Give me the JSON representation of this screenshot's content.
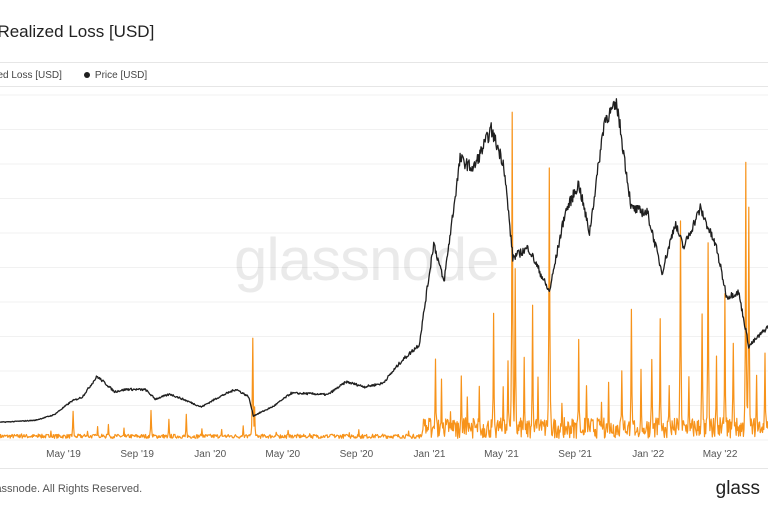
{
  "header": {
    "title": "t Realized Loss [USD]"
  },
  "legend": [
    {
      "label": "lized Loss [USD]",
      "color": "#f7931a"
    },
    {
      "label": "Price [USD]",
      "color": "#1f1f1f"
    }
  ],
  "watermark": "glassnode",
  "footer": {
    "copyright": "lassnode. All Rights Reserved.",
    "logo": "glass"
  },
  "chart_data": {
    "type": "line",
    "title": "t Realized Loss [USD]",
    "xlabel": "",
    "ylabel": "",
    "x_range": [
      "2019-01-15",
      "2022-07-20"
    ],
    "grid": true,
    "legend_placement": "top-left",
    "x_ticks": [
      {
        "label": "May '19",
        "date": "2019-05-01"
      },
      {
        "label": "Sep '19",
        "date": "2019-09-01"
      },
      {
        "label": "Jan '20",
        "date": "2020-01-01"
      },
      {
        "label": "May '20",
        "date": "2020-05-01"
      },
      {
        "label": "Sep '20",
        "date": "2020-09-01"
      },
      {
        "label": "Jan '21",
        "date": "2021-01-01"
      },
      {
        "label": "May '21",
        "date": "2021-05-01"
      },
      {
        "label": "Sep '21",
        "date": "2021-09-01"
      },
      {
        "label": "Jan '22",
        "date": "2022-01-01"
      },
      {
        "label": "May '22",
        "date": "2022-05-01"
      }
    ],
    "series": [
      {
        "name": "Price [USD]",
        "color": "#1f1f1f",
        "axis": "left",
        "ylim": [
          0,
          70000
        ],
        "points": [
          [
            "2019-01-15",
            3600
          ],
          [
            "2019-02-15",
            3800
          ],
          [
            "2019-03-15",
            4000
          ],
          [
            "2019-04-15",
            5100
          ],
          [
            "2019-05-15",
            7900
          ],
          [
            "2019-06-01",
            8700
          ],
          [
            "2019-06-26",
            12900
          ],
          [
            "2019-07-10",
            11500
          ],
          [
            "2019-07-25",
            9800
          ],
          [
            "2019-08-15",
            10300
          ],
          [
            "2019-09-15",
            10200
          ],
          [
            "2019-10-01",
            8300
          ],
          [
            "2019-10-26",
            9300
          ],
          [
            "2019-11-20",
            8100
          ],
          [
            "2019-12-17",
            6700
          ],
          [
            "2020-01-15",
            8700
          ],
          [
            "2020-02-13",
            10300
          ],
          [
            "2020-03-05",
            8800
          ],
          [
            "2020-03-13",
            4900
          ],
          [
            "2020-04-15",
            6800
          ],
          [
            "2020-05-15",
            9500
          ],
          [
            "2020-06-15",
            9400
          ],
          [
            "2020-07-15",
            9200
          ],
          [
            "2020-08-15",
            11800
          ],
          [
            "2020-09-15",
            10800
          ],
          [
            "2020-10-15",
            11500
          ],
          [
            "2020-11-15",
            16000
          ],
          [
            "2020-12-15",
            19400
          ],
          [
            "2021-01-08",
            40000
          ],
          [
            "2021-01-25",
            32000
          ],
          [
            "2021-02-21",
            57000
          ],
          [
            "2021-03-15",
            55000
          ],
          [
            "2021-04-14",
            63000
          ],
          [
            "2021-05-05",
            56000
          ],
          [
            "2021-05-20",
            37000
          ],
          [
            "2021-06-15",
            39000
          ],
          [
            "2021-07-20",
            30000
          ],
          [
            "2021-08-15",
            46000
          ],
          [
            "2021-09-07",
            52000
          ],
          [
            "2021-09-25",
            42000
          ],
          [
            "2021-10-20",
            65000
          ],
          [
            "2021-11-10",
            68000
          ],
          [
            "2021-12-04",
            47000
          ],
          [
            "2021-12-31",
            46000
          ],
          [
            "2022-01-24",
            34000
          ],
          [
            "2022-02-15",
            44000
          ],
          [
            "2022-03-01",
            39000
          ],
          [
            "2022-03-29",
            47000
          ],
          [
            "2022-04-25",
            39000
          ],
          [
            "2022-05-12",
            29000
          ],
          [
            "2022-06-01",
            30000
          ],
          [
            "2022-06-18",
            19000
          ],
          [
            "2022-07-20",
            23000
          ]
        ]
      },
      {
        "name": "Realized Loss [USD]",
        "color": "#f7931a",
        "axis": "right",
        "ylim": [
          0,
          5000000000
        ],
        "baseline": 60000000,
        "spikes": [
          [
            "2019-02-20",
            80000000
          ],
          [
            "2019-03-20",
            90000000
          ],
          [
            "2019-04-10",
            120000000
          ],
          [
            "2019-05-17",
            450000000
          ],
          [
            "2019-06-10",
            130000000
          ],
          [
            "2019-06-27",
            220000000
          ],
          [
            "2019-07-15",
            250000000
          ],
          [
            "2019-08-10",
            150000000
          ],
          [
            "2019-09-24",
            500000000
          ],
          [
            "2019-10-24",
            280000000
          ],
          [
            "2019-11-22",
            350000000
          ],
          [
            "2019-12-18",
            180000000
          ],
          [
            "2020-01-20",
            150000000
          ],
          [
            "2020-02-25",
            230000000
          ],
          [
            "2020-03-12",
            1600000000
          ],
          [
            "2020-03-15",
            450000000
          ],
          [
            "2020-04-20",
            100000000
          ],
          [
            "2020-05-10",
            160000000
          ],
          [
            "2020-06-15",
            90000000
          ],
          [
            "2020-07-20",
            80000000
          ],
          [
            "2020-08-20",
            110000000
          ],
          [
            "2020-09-05",
            160000000
          ],
          [
            "2020-10-15",
            100000000
          ],
          [
            "2020-11-27",
            130000000
          ],
          [
            "2020-12-21",
            150000000
          ],
          [
            "2021-01-11",
            1300000000
          ],
          [
            "2021-01-21",
            800000000
          ],
          [
            "2021-02-05",
            400000000
          ],
          [
            "2021-02-23",
            950000000
          ],
          [
            "2021-03-05",
            600000000
          ],
          [
            "2021-03-25",
            700000000
          ],
          [
            "2021-04-18",
            1600000000
          ],
          [
            "2021-05-04",
            800000000
          ],
          [
            "2021-05-12",
            1300000000
          ],
          [
            "2021-05-19",
            4800000000
          ],
          [
            "2021-05-24",
            2400000000
          ],
          [
            "2021-06-08",
            1100000000
          ],
          [
            "2021-06-22",
            1900000000
          ],
          [
            "2021-07-01",
            800000000
          ],
          [
            "2021-07-20",
            4200000000
          ],
          [
            "2021-08-10",
            500000000
          ],
          [
            "2021-09-07",
            1400000000
          ],
          [
            "2021-09-20",
            900000000
          ],
          [
            "2021-10-15",
            500000000
          ],
          [
            "2021-10-27",
            850000000
          ],
          [
            "2021-11-18",
            1100000000
          ],
          [
            "2021-12-04",
            1700000000
          ],
          [
            "2021-12-20",
            900000000
          ],
          [
            "2022-01-07",
            1300000000
          ],
          [
            "2022-01-21",
            1600000000
          ],
          [
            "2022-02-05",
            900000000
          ],
          [
            "2022-02-24",
            3300000000
          ],
          [
            "2022-03-10",
            1000000000
          ],
          [
            "2022-04-01",
            1900000000
          ],
          [
            "2022-04-11",
            3000000000
          ],
          [
            "2022-04-25",
            1200000000
          ],
          [
            "2022-05-09",
            1900000000
          ],
          [
            "2022-05-23",
            1600000000
          ],
          [
            "2022-06-13",
            3600000000
          ],
          [
            "2022-06-18",
            3600000000
          ],
          [
            "2022-07-01",
            1100000000
          ],
          [
            "2022-07-15",
            1300000000
          ]
        ]
      }
    ]
  }
}
